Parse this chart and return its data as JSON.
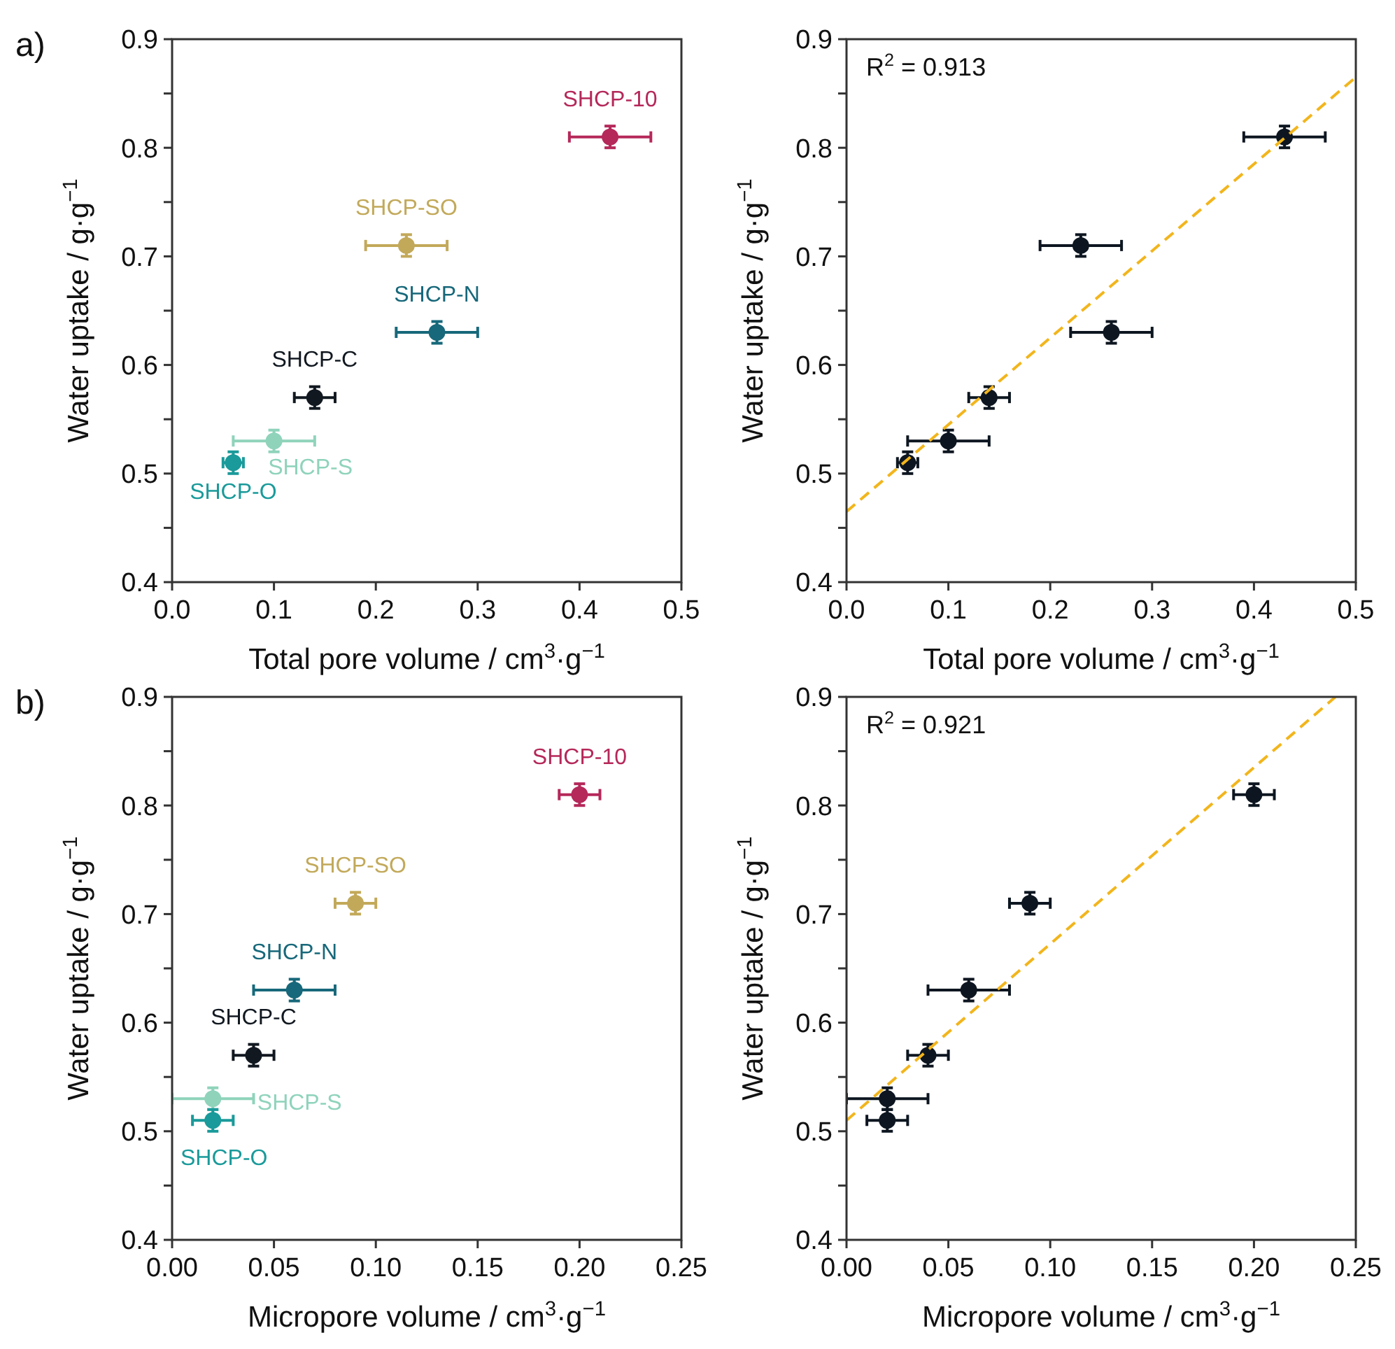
{
  "chart_data": [
    {
      "type": "scatter",
      "xlabel": "Total pore volume / cm$^{3}$·g$^{−1}$",
      "ylabel": "Water uptake / g·g$^{−1}$",
      "annotations": [
        "a)"
      ],
      "marker": "circle",
      "xlim": [
        0,
        0.5
      ],
      "xticks": [
        {
          "value": 0,
          "label": "0.0"
        },
        0.1,
        0.2,
        0.3,
        0.4,
        0.5
      ],
      "ylim": [
        0.4,
        0.9
      ],
      "yticks": [
        0.4,
        {
          "value": 0.45,
          "label": null
        },
        0.5,
        {
          "value": 0.55,
          "label": null
        },
        0.6,
        {
          "value": 0.65,
          "label": null
        },
        0.7,
        {
          "value": 0.75,
          "label": null
        },
        0.8,
        {
          "value": 0.85,
          "label": null
        },
        0.9
      ],
      "series": [
        {
          "name": "SHCP-10",
          "color": "#b5285a",
          "x": [
            0.43
          ],
          "values": [
            0.81
          ],
          "errors": [
            0.01
          ],
          "xerrors": [
            0.04
          ]
        },
        {
          "name": "SHCP-SO",
          "color": "#c2a95a",
          "x": [
            0.23
          ],
          "values": [
            0.71
          ],
          "errors": [
            0.01
          ],
          "xerrors": [
            0.04
          ]
        },
        {
          "name": "SHCP-N",
          "color": "#17687a",
          "x": [
            0.26
          ],
          "values": [
            0.63
          ],
          "errors": [
            0.01
          ],
          "xerrors": [
            0.04
          ]
        },
        {
          "name": "SHCP-C",
          "color": "#111820",
          "x": [
            0.14
          ],
          "values": [
            0.57
          ],
          "errors": [
            0.01
          ],
          "xerrors": [
            0.02
          ]
        },
        {
          "name": "SHCP-S",
          "color": "#8fd3bb",
          "x": [
            0.1
          ],
          "values": [
            0.53
          ],
          "errors": [
            0.01
          ],
          "xerrors": [
            0.04
          ]
        },
        {
          "name": "SHCP-O",
          "color": "#1a9a9a",
          "x": [
            0.06
          ],
          "values": [
            0.51
          ],
          "errors": [
            0.01
          ],
          "xerrors": [
            0.01
          ]
        }
      ]
    },
    {
      "type": "scatter",
      "xlabel": "Total pore volume / cm$^{3}$·g$^{−1}$",
      "ylabel": "Water uptake / g·g$^{−1}$",
      "annotations": [
        "R$^{2}$ = 0.913"
      ],
      "marker": "circle",
      "xlim": [
        0,
        0.5
      ],
      "xticks": [
        {
          "value": 0,
          "label": "0.0"
        },
        0.1,
        0.2,
        0.3,
        0.4,
        0.5
      ],
      "ylim": [
        0.4,
        0.9
      ],
      "yticks": [
        0.4,
        {
          "value": 0.45,
          "label": null
        },
        0.5,
        {
          "value": 0.55,
          "label": null
        },
        0.6,
        {
          "value": 0.65,
          "label": null
        },
        0.7,
        {
          "value": 0.75,
          "label": null
        },
        0.8,
        {
          "value": 0.85,
          "label": null
        },
        0.9
      ],
      "series": [
        {
          "color": "#0d1620",
          "x": [
            0.43,
            0.23,
            0.26,
            0.14,
            0.1,
            0.06
          ],
          "values": [
            0.81,
            0.71,
            0.63,
            0.57,
            0.53,
            0.51
          ],
          "errors": [
            0.01,
            0.01,
            0.01,
            0.01,
            0.01,
            0.01
          ],
          "xerrors": [
            0.04,
            0.04,
            0.04,
            0.02,
            0.04,
            0.01
          ]
        },
        {
          "type": "line",
          "color": "#f2b51c",
          "line_style": "dashed",
          "marker": "none",
          "x": [
            0,
            0.5
          ],
          "values": [
            0.465,
            0.865
          ]
        }
      ]
    },
    {
      "type": "scatter",
      "xlabel": "Micropore volume / cm$^{3}$·g$^{−1}$",
      "ylabel": "Water uptake / g·g$^{−1}$",
      "annotations": [
        "b)"
      ],
      "marker": "circle",
      "xlim": [
        0,
        0.25
      ],
      "xticks": [
        {
          "value": 0,
          "label": "0.00"
        },
        0.05,
        {
          "value": 0.1,
          "label": "0.10"
        },
        0.15,
        {
          "value": 0.2,
          "label": "0.20"
        },
        0.25
      ],
      "ylim": [
        0.4,
        0.9
      ],
      "yticks": [
        0.4,
        {
          "value": 0.45,
          "label": null
        },
        0.5,
        {
          "value": 0.55,
          "label": null
        },
        0.6,
        {
          "value": 0.65,
          "label": null
        },
        0.7,
        {
          "value": 0.75,
          "label": null
        },
        0.8,
        {
          "value": 0.85,
          "label": null
        },
        0.9
      ],
      "series": [
        {
          "name": "SHCP-10",
          "color": "#b5285a",
          "x": [
            0.2
          ],
          "values": [
            0.81
          ],
          "errors": [
            0.01
          ],
          "xerrors": [
            0.01
          ]
        },
        {
          "name": "SHCP-SO",
          "color": "#c2a95a",
          "x": [
            0.09
          ],
          "values": [
            0.71
          ],
          "errors": [
            0.01
          ],
          "xerrors": [
            0.01
          ]
        },
        {
          "name": "SHCP-N",
          "color": "#17687a",
          "x": [
            0.06
          ],
          "values": [
            0.63
          ],
          "errors": [
            0.01
          ],
          "xerrors": [
            0.02
          ]
        },
        {
          "name": "SHCP-C",
          "color": "#111820",
          "x": [
            0.04
          ],
          "values": [
            0.57
          ],
          "errors": [
            0.01
          ],
          "xerrors": [
            0.01
          ]
        },
        {
          "name": "SHCP-S",
          "color": "#8fd3bb",
          "x": [
            0.02
          ],
          "values": [
            0.53
          ],
          "errors": [
            0.01
          ],
          "xerrors": [
            0.02
          ]
        },
        {
          "name": "SHCP-O",
          "color": "#1a9a9a",
          "x": [
            0.02
          ],
          "values": [
            0.51
          ],
          "errors": [
            0.01
          ],
          "xerrors": [
            0.01
          ]
        }
      ]
    },
    {
      "type": "scatter",
      "xlabel": "Micropore volume / cm$^{3}$·g$^{−1}$",
      "ylabel": "Water uptake / g·g$^{−1}$",
      "annotations": [
        "R$^{2}$ = 0.921"
      ],
      "marker": "circle",
      "xlim": [
        0,
        0.25
      ],
      "xticks": [
        {
          "value": 0,
          "label": "0.00"
        },
        0.05,
        {
          "value": 0.1,
          "label": "0.10"
        },
        0.15,
        {
          "value": 0.2,
          "label": "0.20"
        },
        0.25
      ],
      "ylim": [
        0.4,
        0.9
      ],
      "yticks": [
        0.4,
        {
          "value": 0.45,
          "label": null
        },
        0.5,
        {
          "value": 0.55,
          "label": null
        },
        0.6,
        {
          "value": 0.65,
          "label": null
        },
        0.7,
        {
          "value": 0.75,
          "label": null
        },
        0.8,
        {
          "value": 0.85,
          "label": null
        },
        0.9
      ],
      "series": [
        {
          "color": "#0d1620",
          "x": [
            0.2,
            0.09,
            0.06,
            0.04,
            0.02,
            0.02
          ],
          "values": [
            0.81,
            0.71,
            0.63,
            0.57,
            0.53,
            0.51
          ],
          "errors": [
            0.01,
            0.01,
            0.01,
            0.01,
            0.01,
            0.01
          ],
          "xerrors": [
            0.01,
            0.01,
            0.02,
            0.01,
            0.02,
            0.01
          ]
        },
        {
          "type": "line",
          "color": "#f2b51c",
          "line_style": "dashed",
          "marker": "none",
          "x": [
            0,
            0.24
          ],
          "values": [
            0.51,
            0.9
          ]
        }
      ]
    }
  ]
}
